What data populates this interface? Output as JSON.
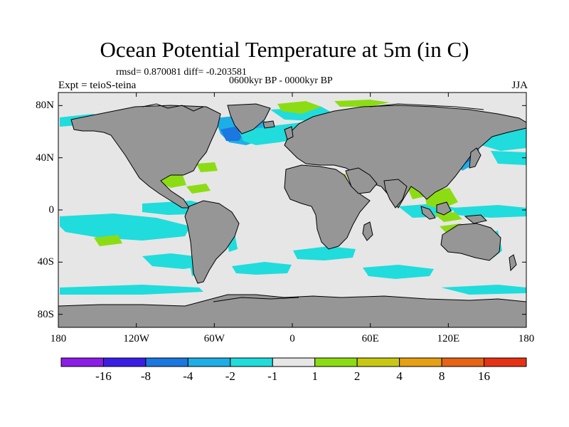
{
  "plot": {
    "title": "Ocean Potential Temperature at 5m (in C)",
    "stats": "rmsd= 0.870081 diff= -0.203581",
    "period": "0600kyr BP - 0000kyr BP",
    "experiment": "Expt = teioS-teina",
    "season": "JJA"
  },
  "axes": {
    "lat_labels": [
      {
        "text": "80N",
        "lat": 80
      },
      {
        "text": "40N",
        "lat": 40
      },
      {
        "text": "0",
        "lat": 0
      },
      {
        "text": "40S",
        "lat": -40
      },
      {
        "text": "80S",
        "lat": -80
      }
    ],
    "lon_labels": [
      {
        "text": "180",
        "lon": -180
      },
      {
        "text": "120W",
        "lon": -120
      },
      {
        "text": "60W",
        "lon": -60
      },
      {
        "text": "0",
        "lon": 0
      },
      {
        "text": "60E",
        "lon": 60
      },
      {
        "text": "120E",
        "lon": 120
      },
      {
        "text": "180",
        "lon": 180
      }
    ],
    "lat_range": [
      -90,
      90
    ],
    "lon_range": [
      -180,
      180
    ]
  },
  "colorbar": {
    "colors": [
      "#8c1de6",
      "#3b1ee6",
      "#1a78e0",
      "#1eaee6",
      "#20dcdc",
      "#e6e6e6",
      "#8cdc14",
      "#c8c814",
      "#e6a014",
      "#e66414",
      "#e63214"
    ],
    "labels": [
      "-16",
      "-8",
      "-4",
      "-2",
      "-1",
      "1",
      "2",
      "4",
      "8",
      "16"
    ]
  },
  "colors": {
    "land": "#969696",
    "ocean_neutral": "#e6e6e6",
    "cool_light": "#20dcdc",
    "cool_mid": "#1eaee6",
    "cool_deep": "#1a78e0",
    "warm_light": "#8cdc14",
    "warm_mid": "#c8c814",
    "warm_high": "#e6a014"
  }
}
